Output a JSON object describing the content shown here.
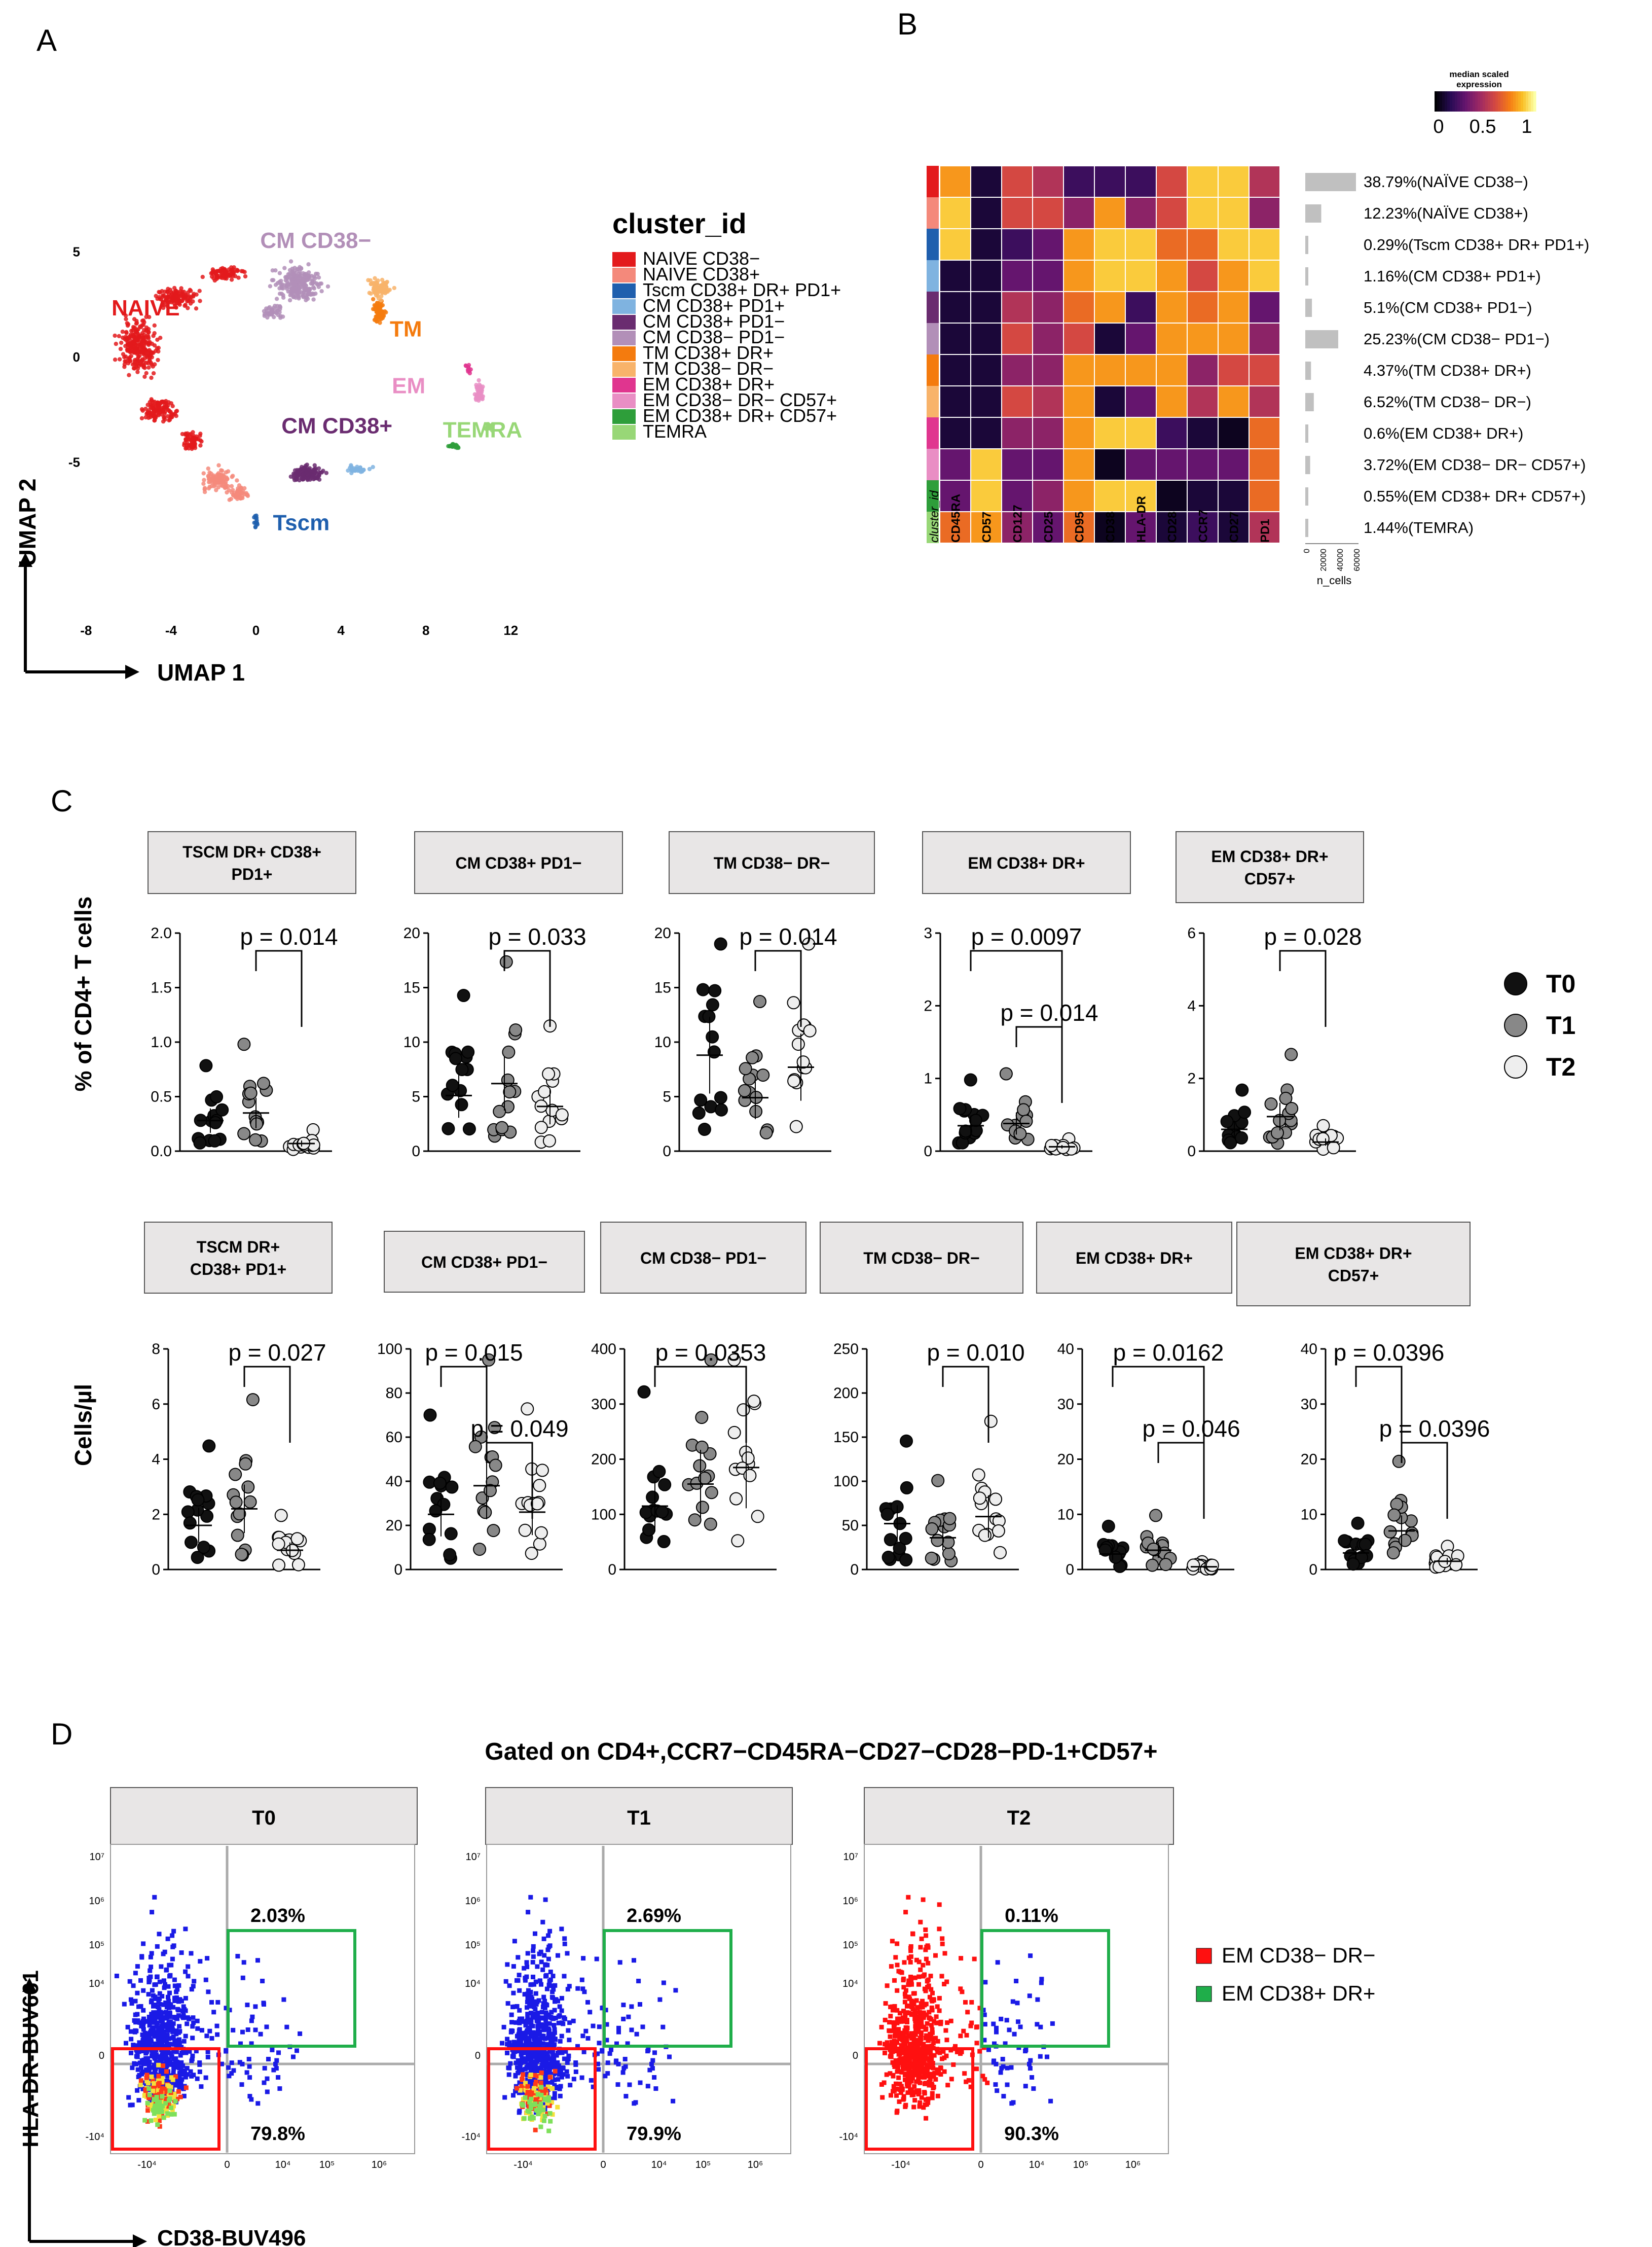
{
  "panels": {
    "a": "A",
    "b": "B",
    "c": "C",
    "d": "D"
  },
  "panelA": {
    "xlabel": "UMAP 1",
    "ylabel": "UMAP 2",
    "xticks": [
      "-8",
      "-4",
      "0",
      "4",
      "8",
      "12"
    ],
    "yticks": [
      "5",
      "0",
      "-5"
    ],
    "cluster_labels": [
      "NAIVE",
      "CM CD38−",
      "TM",
      "EM",
      "CM CD38+",
      "TEMRA",
      "Tscm"
    ],
    "legend_title": "cluster_id",
    "legend": [
      {
        "label": "NAIVE CD38−",
        "color": "#e31a1c"
      },
      {
        "label": "NAIVE CD38+",
        "color": "#f4897b"
      },
      {
        "label": "Tscm CD38+ DR+ PD1+",
        "color": "#1f5fae"
      },
      {
        "label": "CM CD38+ PD1+",
        "color": "#7fb3e0"
      },
      {
        "label": "CM CD38+ PD1−",
        "color": "#6a2c70"
      },
      {
        "label": "CM CD38− PD1−",
        "color": "#b28fb8"
      },
      {
        "label": "TM CD38+ DR+",
        "color": "#f47b0e"
      },
      {
        "label": "TM CD38− DR−",
        "color": "#f8b36a"
      },
      {
        "label": "EM CD38+ DR+",
        "color": "#e0358f"
      },
      {
        "label": "EM CD38− DR− CD57+",
        "color": "#e98ec4"
      },
      {
        "label": "EM CD38+ DR+ CD57+",
        "color": "#2e9e3a"
      },
      {
        "label": "TEMRA",
        "color": "#98d777"
      }
    ]
  },
  "panelB": {
    "colorbar_title": [
      "median scaled",
      "expression"
    ],
    "colorbar_ticks": [
      "0",
      "0.5",
      "1"
    ],
    "columns": [
      "cluster_id",
      "CD45RA",
      "CD57",
      "CD127",
      "CD25",
      "CD95",
      "CD38",
      "HLA-DR",
      "CD28",
      "CCR7",
      "CD27",
      "PD1"
    ],
    "ncells_label": "n_cells",
    "ncells_ticks": [
      "0",
      "20000",
      "40000",
      "60000"
    ],
    "rows": [
      {
        "label": "38.79%(NAÏVE CD38−)",
        "values": [
          0.8,
          0.1,
          0.6,
          0.5,
          0.2,
          0.2,
          0.2,
          0.6,
          0.9,
          0.9,
          0.5
        ],
        "ncells": 0.3879
      },
      {
        "label": "12.23%(NAÏVE CD38+)",
        "values": [
          0.9,
          0.1,
          0.6,
          0.6,
          0.4,
          0.8,
          0.4,
          0.6,
          0.9,
          0.9,
          0.4
        ],
        "ncells": 0.1223
      },
      {
        "label": "0.29%(Tscm CD38+ DR+ PD1+)",
        "values": [
          0.9,
          0.1,
          0.2,
          0.3,
          0.8,
          0.9,
          0.9,
          0.7,
          0.7,
          0.9,
          0.9
        ],
        "ncells": 0.0029
      },
      {
        "label": "1.16%(CM CD38+ PD1+)",
        "values": [
          0.1,
          0.1,
          0.3,
          0.3,
          0.8,
          0.9,
          0.9,
          0.8,
          0.6,
          0.8,
          0.9
        ],
        "ncells": 0.0116
      },
      {
        "label": "5.1%(CM CD38+ PD1−)",
        "values": [
          0.1,
          0.1,
          0.5,
          0.4,
          0.7,
          0.8,
          0.2,
          0.8,
          0.7,
          0.8,
          0.3
        ],
        "ncells": 0.051
      },
      {
        "label": "25.23%(CM CD38− PD1−)",
        "values": [
          0.1,
          0.1,
          0.6,
          0.4,
          0.6,
          0.1,
          0.3,
          0.8,
          0.8,
          0.8,
          0.4
        ],
        "ncells": 0.2523
      },
      {
        "label": "4.37%(TM CD38+ DR+)",
        "values": [
          0.1,
          0.1,
          0.4,
          0.4,
          0.8,
          0.8,
          0.8,
          0.8,
          0.4,
          0.6,
          0.6
        ],
        "ncells": 0.0437
      },
      {
        "label": "6.52%(TM CD38− DR−)",
        "values": [
          0.1,
          0.1,
          0.6,
          0.5,
          0.8,
          0.1,
          0.3,
          0.8,
          0.5,
          0.8,
          0.5
        ],
        "ncells": 0.0652
      },
      {
        "label": "0.6%(EM CD38+ DR+)",
        "values": [
          0.1,
          0.1,
          0.4,
          0.4,
          0.8,
          0.9,
          0.9,
          0.2,
          0.1,
          0.05,
          0.7
        ],
        "ncells": 0.006
      },
      {
        "label": "3.72%(EM CD38− DR− CD57+)",
        "values": [
          0.3,
          0.9,
          0.3,
          0.3,
          0.8,
          0.05,
          0.3,
          0.3,
          0.3,
          0.3,
          0.7
        ],
        "ncells": 0.0372
      },
      {
        "label": "0.55%(EM CD38+ DR+ CD57+)",
        "values": [
          0.3,
          0.9,
          0.3,
          0.4,
          0.8,
          0.9,
          0.9,
          0.05,
          0.1,
          0.1,
          0.7
        ],
        "ncells": 0.0055
      },
      {
        "label": "1.44%(TEMRA)",
        "values": [
          0.7,
          0.8,
          0.4,
          0.3,
          0.7,
          0.05,
          0.3,
          0.1,
          0.2,
          0.1,
          0.5
        ],
        "ncells": 0.0144
      }
    ],
    "row_colors": [
      "#e31a1c",
      "#f4897b",
      "#1f5fae",
      "#7fb3e0",
      "#6a2c70",
      "#b28fb8",
      "#f47b0e",
      "#f8b36a",
      "#e0358f",
      "#e98ec4",
      "#2e9e3a",
      "#98d777"
    ]
  },
  "panelC": {
    "row1_ylabel": "% of CD4+ T cells",
    "row2_ylabel": "Cells/µl",
    "legend": [
      {
        "label": "T0",
        "color": "#111111"
      },
      {
        "label": "T1",
        "color": "#888888"
      },
      {
        "label": "T2",
        "color": "#eeeeee"
      }
    ],
    "row1": [
      {
        "title": [
          "TSCM DR+ CD38+",
          "PD1+"
        ],
        "ylim": [
          0,
          2.0
        ],
        "yticks": [
          "0.0",
          "0.5",
          "1.0",
          "1.5",
          "2.0"
        ],
        "pvals": [
          {
            "text": "p = 0.014",
            "from": 1,
            "to": 2
          }
        ],
        "medians": [
          0.28,
          0.35,
          0.07
        ]
      },
      {
        "title": [
          "CM CD38+ PD1−"
        ],
        "ylim": [
          0,
          20
        ],
        "yticks": [
          "0",
          "5",
          "10",
          "15",
          "20"
        ],
        "pvals": [
          {
            "text": "p = 0.033",
            "from": 1,
            "to": 2
          }
        ],
        "medians": [
          5.1,
          6.2,
          4.1
        ]
      },
      {
        "title": [
          "TM CD38− DR−"
        ],
        "ylim": [
          0,
          20
        ],
        "yticks": [
          "0",
          "5",
          "10",
          "15",
          "20"
        ],
        "pvals": [
          {
            "text": "p = 0.014",
            "from": 1,
            "to": 2
          }
        ],
        "medians": [
          8.8,
          4.9,
          7.7
        ]
      },
      {
        "title": [
          "EM CD38+ DR+"
        ],
        "ylim": [
          0,
          3
        ],
        "yticks": [
          "0",
          "1",
          "2",
          "3"
        ],
        "pvals": [
          {
            "text": "p = 0.0097",
            "from": 0,
            "to": 2
          },
          {
            "text": "p = 0.014",
            "from": 1,
            "to": 2
          }
        ],
        "medians": [
          0.35,
          0.38,
          0.06
        ]
      },
      {
        "title": [
          "EM CD38+ DR+",
          "CD57+"
        ],
        "ylim": [
          0,
          6
        ],
        "yticks": [
          "0",
          "2",
          "4",
          "6"
        ],
        "pvals": [
          {
            "text": "p = 0.028",
            "from": 1,
            "to": 2
          }
        ],
        "medians": [
          0.6,
          0.95,
          0.25
        ]
      }
    ],
    "row2": [
      {
        "title": [
          "TSCM DR+",
          "CD38+ PD1+"
        ],
        "ylim": [
          0,
          8
        ],
        "yticks": [
          "0",
          "2",
          "4",
          "6",
          "8"
        ],
        "pvals": [
          {
            "text": "p = 0.027",
            "from": 1,
            "to": 2
          }
        ],
        "medians": [
          1.6,
          2.2,
          0.7
        ]
      },
      {
        "title": [
          "CM CD38+ PD1−"
        ],
        "ylim": [
          0,
          100
        ],
        "yticks": [
          "0",
          "20",
          "40",
          "60",
          "80",
          "100"
        ],
        "pvals": [
          {
            "text": "p = 0.015",
            "from": 0,
            "to": 1
          },
          {
            "text": "p = 0.049",
            "from": 1,
            "to": 2
          }
        ],
        "medians": [
          25,
          38,
          26
        ]
      },
      {
        "title": [
          "CM CD38− PD1−"
        ],
        "ylim": [
          0,
          400
        ],
        "yticks": [
          "0",
          "100",
          "200",
          "300",
          "400"
        ],
        "pvals": [
          {
            "text": "p = 0.0353",
            "from": 0,
            "to": 2
          }
        ],
        "medians": [
          115,
          155,
          185
        ]
      },
      {
        "title": [
          "TM CD38− DR−"
        ],
        "ylim": [
          0,
          250
        ],
        "yticks": [
          "0",
          "50",
          "100",
          "150",
          "200",
          "250"
        ],
        "pvals": [
          {
            "text": "p = 0.010",
            "from": 1,
            "to": 2
          }
        ],
        "medians": [
          52,
          36,
          60
        ]
      },
      {
        "title": [
          "EM CD38+ DR+"
        ],
        "ylim": [
          0,
          40
        ],
        "yticks": [
          "0",
          "10",
          "20",
          "30",
          "40"
        ],
        "pvals": [
          {
            "text": "p = 0.0162",
            "from": 0,
            "to": 2
          },
          {
            "text": "p = 0.046",
            "from": 1,
            "to": 2
          }
        ],
        "medians": [
          2.8,
          3.5,
          0.5
        ]
      },
      {
        "title": [
          "EM CD38+ DR+",
          "CD57+"
        ],
        "ylim": [
          0,
          40
        ],
        "yticks": [
          "0",
          "10",
          "20",
          "30",
          "40"
        ],
        "pvals": [
          {
            "text": "p = 0.0396",
            "from": 0,
            "to": 1
          },
          {
            "text": "p = 0.0396",
            "from": 1,
            "to": 2
          }
        ],
        "medians": [
          3,
          7,
          1.5
        ]
      }
    ]
  },
  "panelD": {
    "title": "Gated on CD4+,CCR7−CD45RA−CD27−CD28−PD-1+CD57+",
    "xlabel": "CD38-BUV496",
    "ylabel": "HLA-DR-BUV661",
    "yticks": [
      "10⁷",
      "10⁶",
      "10⁵",
      "10⁴",
      "0",
      "-10⁴"
    ],
    "xticks": [
      "-10⁴",
      "0",
      "10⁴",
      "10⁵",
      "10⁶"
    ],
    "plots": [
      {
        "title": "T0",
        "green_pct": "2.03%",
        "red_pct": "79.8%",
        "hot": 1.0
      },
      {
        "title": "T1",
        "green_pct": "2.69%",
        "red_pct": "79.9%",
        "hot": 1.2
      },
      {
        "title": "T2",
        "green_pct": "0.11%",
        "red_pct": "90.3%",
        "hot": 0.0
      }
    ],
    "legend": [
      {
        "label": "EM CD38− DR−",
        "color": "#ff1010"
      },
      {
        "label": "EM CD38+ DR+",
        "color": "#1fae4a"
      }
    ]
  }
}
